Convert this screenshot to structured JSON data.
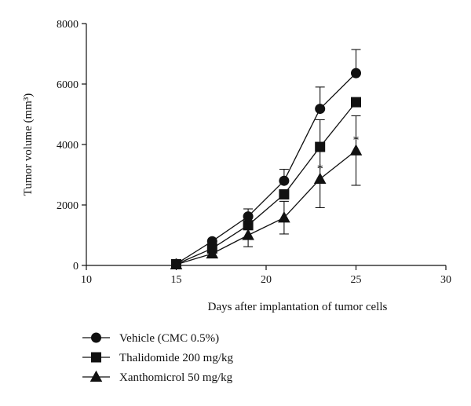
{
  "chart_data": {
    "type": "line",
    "title": "",
    "xlabel": "Days after implantation of tumor cells",
    "ylabel": "Tumor volume (mm³)",
    "xlim": [
      10,
      30
    ],
    "ylim": [
      0,
      8000
    ],
    "xticks": [
      "10",
      "15",
      "20",
      "25",
      "30"
    ],
    "yticks": [
      "0",
      "2000",
      "4000",
      "6000",
      "8000"
    ],
    "grid": false,
    "legend_position": "bottom-left",
    "series": [
      {
        "name": "Vehicle (CMC 0.5%)",
        "marker": "circle",
        "x": [
          15,
          17,
          19,
          21,
          23,
          25
        ],
        "y": [
          50,
          800,
          1620,
          2800,
          5180,
          6360
        ],
        "error": [
          0,
          0,
          250,
          380,
          720,
          780
        ]
      },
      {
        "name": "Thalidomide 200 mg/kg",
        "marker": "square",
        "x": [
          15,
          17,
          19,
          21,
          23,
          25
        ],
        "y": [
          40,
          560,
          1330,
          2350,
          3920,
          5400
        ],
        "error": [
          0,
          0,
          0,
          0,
          900,
          0
        ]
      },
      {
        "name": "Xanthomicrol 50 mg/kg",
        "marker": "triangle",
        "x": [
          15,
          17,
          19,
          21,
          23,
          25
        ],
        "y": [
          30,
          390,
          1000,
          1580,
          2860,
          3800
        ],
        "error": [
          0,
          0,
          380,
          540,
          950,
          1150
        ]
      }
    ],
    "annotations": [
      {
        "text": "*",
        "x": 23,
        "y": 2860
      },
      {
        "text": "*",
        "x": 25,
        "y": 3800
      }
    ]
  }
}
